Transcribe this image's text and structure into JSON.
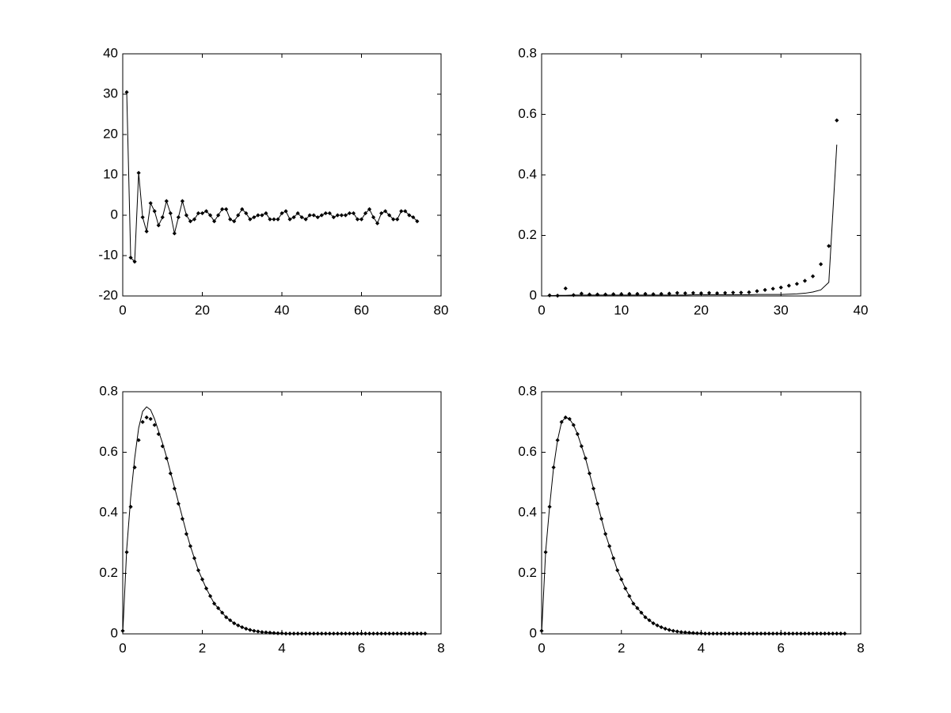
{
  "chart_data": [
    {
      "type": "line",
      "x": [
        1,
        2,
        3,
        4,
        5,
        6,
        7,
        8,
        9,
        10,
        11,
        12,
        13,
        14,
        15,
        16,
        17,
        18,
        19,
        20,
        21,
        22,
        23,
        24,
        25,
        26,
        27,
        28,
        29,
        30,
        31,
        32,
        33,
        34,
        35,
        36,
        37,
        38,
        39,
        40,
        41,
        42,
        43,
        44,
        45,
        46,
        47,
        48,
        49,
        50,
        51,
        52,
        53,
        54,
        55,
        56,
        57,
        58,
        59,
        60,
        61,
        62,
        63,
        64,
        65,
        66,
        67,
        68,
        69,
        70,
        71,
        72,
        73,
        74
      ],
      "xlim": [
        0,
        80
      ],
      "xticks": [
        0,
        20,
        40,
        60,
        80
      ],
      "ylim": [
        -20,
        40
      ],
      "yticks": [
        -20,
        -10,
        0,
        10,
        20,
        30,
        40
      ],
      "series": [
        {
          "color": "#000000",
          "line": true,
          "marker": true,
          "values": [
            30.5,
            -10.5,
            -11.5,
            10.5,
            -0.5,
            -4,
            3,
            1,
            -2.5,
            -0.5,
            3.5,
            0.5,
            -4.5,
            -0.5,
            3.5,
            0,
            -1.5,
            -1,
            0.5,
            0.5,
            1,
            0,
            -1.5,
            0,
            1.5,
            1.5,
            -1,
            -1.5,
            0,
            1.5,
            0.5,
            -1,
            -0.5,
            0,
            0,
            0.5,
            -1,
            -1,
            -1,
            0.5,
            1,
            -1,
            -0.5,
            0.5,
            -0.5,
            -1,
            0,
            0,
            -0.5,
            0,
            0.5,
            0.5,
            -0.5,
            0,
            0,
            0,
            0.5,
            0.5,
            -1,
            -1,
            0.5,
            1.5,
            -0.5,
            -2,
            0.5,
            1,
            0,
            -1,
            -1,
            1,
            1,
            0,
            -0.5,
            -1.5
          ]
        }
      ]
    },
    {
      "type": "line",
      "x": [
        1,
        2,
        3,
        4,
        5,
        6,
        7,
        8,
        9,
        10,
        11,
        12,
        13,
        14,
        15,
        16,
        17,
        18,
        19,
        20,
        21,
        22,
        23,
        24,
        25,
        26,
        27,
        28,
        29,
        30,
        31,
        32,
        33,
        34,
        35,
        36,
        37
      ],
      "xlim": [
        0,
        40
      ],
      "xticks": [
        0,
        10,
        20,
        30,
        40
      ],
      "ylim": [
        0,
        0.8
      ],
      "yticks": [
        0,
        0.2,
        0.4,
        0.6,
        0.8
      ],
      "series": [
        {
          "color": "#000000",
          "line": true,
          "marker": false,
          "values": [
            0.001,
            0.002,
            0.002,
            0.003,
            0.003,
            0.003,
            0.003,
            0.003,
            0.003,
            0.003,
            0.003,
            0.003,
            0.003,
            0.003,
            0.003,
            0.003,
            0.003,
            0.003,
            0.004,
            0.004,
            0.004,
            0.004,
            0.004,
            0.004,
            0.004,
            0.004,
            0.005,
            0.005,
            0.005,
            0.005,
            0.006,
            0.007,
            0.009,
            0.013,
            0.02,
            0.045,
            0.5
          ]
        },
        {
          "color": "#000000",
          "line": false,
          "marker": true,
          "values": [
            0.002,
            0.001,
            0.025,
            0.003,
            0.008,
            0.005,
            0.005,
            0.005,
            0.006,
            0.006,
            0.007,
            0.007,
            0.007,
            0.006,
            0.007,
            0.008,
            0.01,
            0.009,
            0.01,
            0.009,
            0.01,
            0.009,
            0.01,
            0.011,
            0.011,
            0.012,
            0.016,
            0.02,
            0.024,
            0.028,
            0.034,
            0.04,
            0.05,
            0.065,
            0.105,
            0.165,
            0.58
          ]
        }
      ]
    },
    {
      "type": "line",
      "x": [
        0,
        0.1,
        0.2,
        0.3,
        0.4,
        0.5,
        0.6,
        0.7,
        0.8,
        0.9,
        1,
        1.1,
        1.2,
        1.3,
        1.4,
        1.5,
        1.6,
        1.7,
        1.8,
        1.9,
        2,
        2.1,
        2.2,
        2.3,
        2.4,
        2.5,
        2.6,
        2.7,
        2.8,
        2.9,
        3,
        3.1,
        3.2,
        3.3,
        3.4,
        3.5,
        3.6,
        3.7,
        3.8,
        3.9,
        4,
        4.1,
        4.2,
        4.3,
        4.4,
        4.5,
        4.6,
        4.7,
        4.8,
        4.9,
        5,
        5.1,
        5.2,
        5.3,
        5.4,
        5.5,
        5.6,
        5.7,
        5.8,
        5.9,
        6,
        6.1,
        6.2,
        6.3,
        6.4,
        6.5,
        6.6,
        6.7,
        6.8,
        6.9,
        7,
        7.1,
        7.2,
        7.3,
        7.4,
        7.5,
        7.6
      ],
      "xlim": [
        0,
        8
      ],
      "xticks": [
        0,
        2,
        4,
        6,
        8
      ],
      "ylim": [
        0,
        0.8
      ],
      "yticks": [
        0,
        0.2,
        0.4,
        0.6,
        0.8
      ],
      "series": [
        {
          "color": "#000000",
          "line": true,
          "marker": false,
          "values": [
            0,
            0.28,
            0.45,
            0.58,
            0.68,
            0.735,
            0.75,
            0.74,
            0.71,
            0.67,
            0.63,
            0.585,
            0.535,
            0.485,
            0.435,
            0.385,
            0.335,
            0.29,
            0.25,
            0.21,
            0.18,
            0.15,
            0.125,
            0.1,
            0.085,
            0.07,
            0.055,
            0.045,
            0.035,
            0.028,
            0.022,
            0.017,
            0.013,
            0.01,
            0.008,
            0.006,
            0.005,
            0.004,
            0.003,
            0.002,
            0.002,
            0.001,
            0.001,
            0.001,
            0.001,
            0.001,
            0.001,
            0.001,
            0.001,
            0.001,
            0.001,
            0.001,
            0.001,
            0.001,
            0.001,
            0.001,
            0.001,
            0.001,
            0.001,
            0.001,
            0.001,
            0.001,
            0.001,
            0.001,
            0.001,
            0.001,
            0.001,
            0.001,
            0.001,
            0.001,
            0.001,
            0.001,
            0.001,
            0.001,
            0.001,
            0.001,
            0.001
          ]
        },
        {
          "color": "#000000",
          "line": false,
          "marker": true,
          "values": [
            0.01,
            0.27,
            0.42,
            0.55,
            0.64,
            0.7,
            0.715,
            0.71,
            0.69,
            0.66,
            0.62,
            0.58,
            0.53,
            0.48,
            0.43,
            0.38,
            0.33,
            0.29,
            0.25,
            0.21,
            0.18,
            0.15,
            0.125,
            0.1,
            0.085,
            0.07,
            0.055,
            0.045,
            0.035,
            0.028,
            0.022,
            0.017,
            0.013,
            0.01,
            0.008,
            0.006,
            0.005,
            0.004,
            0.003,
            0.002,
            0.002,
            0.001,
            0.001,
            0.001,
            0.001,
            0.001,
            0.001,
            0.001,
            0.001,
            0.001,
            0.001,
            0.001,
            0.001,
            0.001,
            0.001,
            0.001,
            0.001,
            0.001,
            0.001,
            0.001,
            0.001,
            0.001,
            0.001,
            0.001,
            0.001,
            0.001,
            0.001,
            0.001,
            0.001,
            0.001,
            0.001,
            0.001,
            0.001,
            0.001,
            0.001,
            0.001,
            0.001
          ]
        }
      ]
    },
    {
      "type": "line",
      "x": [
        0,
        0.1,
        0.2,
        0.3,
        0.4,
        0.5,
        0.6,
        0.7,
        0.8,
        0.9,
        1,
        1.1,
        1.2,
        1.3,
        1.4,
        1.5,
        1.6,
        1.7,
        1.8,
        1.9,
        2,
        2.1,
        2.2,
        2.3,
        2.4,
        2.5,
        2.6,
        2.7,
        2.8,
        2.9,
        3,
        3.1,
        3.2,
        3.3,
        3.4,
        3.5,
        3.6,
        3.7,
        3.8,
        3.9,
        4,
        4.1,
        4.2,
        4.3,
        4.4,
        4.5,
        4.6,
        4.7,
        4.8,
        4.9,
        5,
        5.1,
        5.2,
        5.3,
        5.4,
        5.5,
        5.6,
        5.7,
        5.8,
        5.9,
        6,
        6.1,
        6.2,
        6.3,
        6.4,
        6.5,
        6.6,
        6.7,
        6.8,
        6.9,
        7,
        7.1,
        7.2,
        7.3,
        7.4,
        7.5,
        7.6
      ],
      "xlim": [
        0,
        8
      ],
      "xticks": [
        0,
        2,
        4,
        6,
        8
      ],
      "ylim": [
        0,
        0.8
      ],
      "yticks": [
        0,
        0.2,
        0.4,
        0.6,
        0.8
      ],
      "series": [
        {
          "color": "#000000",
          "line": true,
          "marker": false,
          "values": [
            0,
            0.27,
            0.42,
            0.55,
            0.64,
            0.7,
            0.715,
            0.71,
            0.69,
            0.66,
            0.62,
            0.58,
            0.53,
            0.48,
            0.43,
            0.38,
            0.33,
            0.29,
            0.25,
            0.21,
            0.18,
            0.15,
            0.125,
            0.1,
            0.085,
            0.07,
            0.055,
            0.045,
            0.035,
            0.028,
            0.022,
            0.017,
            0.013,
            0.01,
            0.008,
            0.006,
            0.005,
            0.004,
            0.003,
            0.002,
            0.002,
            0.001,
            0.001,
            0.001,
            0.001,
            0.001,
            0.001,
            0.001,
            0.001,
            0.001,
            0.001,
            0.001,
            0.001,
            0.001,
            0.001,
            0.001,
            0.001,
            0.001,
            0.001,
            0.001,
            0.001,
            0.001,
            0.001,
            0.001,
            0.001,
            0.001,
            0.001,
            0.001,
            0.001,
            0.001,
            0.001,
            0.001,
            0.001,
            0.001,
            0.001,
            0.001,
            0.001
          ]
        },
        {
          "color": "#000000",
          "line": false,
          "marker": true,
          "values": [
            0.01,
            0.27,
            0.42,
            0.55,
            0.64,
            0.7,
            0.715,
            0.71,
            0.69,
            0.66,
            0.62,
            0.58,
            0.53,
            0.48,
            0.43,
            0.38,
            0.33,
            0.29,
            0.25,
            0.21,
            0.18,
            0.15,
            0.125,
            0.1,
            0.085,
            0.07,
            0.055,
            0.045,
            0.035,
            0.028,
            0.022,
            0.017,
            0.013,
            0.01,
            0.008,
            0.006,
            0.005,
            0.004,
            0.003,
            0.002,
            0.002,
            0.001,
            0.001,
            0.001,
            0.001,
            0.001,
            0.001,
            0.001,
            0.001,
            0.001,
            0.001,
            0.001,
            0.001,
            0.001,
            0.001,
            0.001,
            0.001,
            0.001,
            0.001,
            0.001,
            0.001,
            0.001,
            0.001,
            0.001,
            0.001,
            0.001,
            0.001,
            0.001,
            0.001,
            0.001,
            0.001,
            0.001,
            0.001,
            0.001,
            0.001,
            0.001,
            0.001
          ]
        }
      ]
    }
  ]
}
